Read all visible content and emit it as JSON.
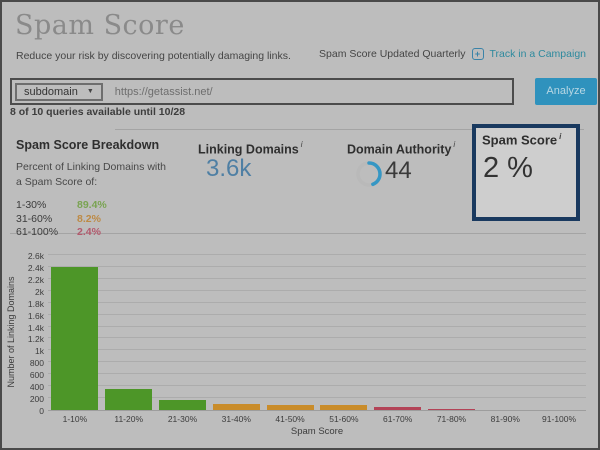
{
  "page": {
    "title": "Spam Score",
    "subtitle": "Reduce your risk by discovering potentially damaging links.",
    "updated_note": "Spam Score Updated Quarterly",
    "track_link_label": "Track in a Campaign",
    "track_icon_glyph": "+"
  },
  "search": {
    "scope_selected": "subdomain",
    "scope_caret": "▼",
    "url_value": "https://getassist.net/",
    "analyze_label": "Analyze",
    "queries_note": "8 of 10 queries available until 10/28"
  },
  "breakdown": {
    "title": "Spam Score Breakdown",
    "description": "Percent of Linking Domains with a Spam Score of:",
    "rows": [
      {
        "range": "1-30%",
        "value": "89.4%",
        "color": "#79a351"
      },
      {
        "range": "31-60%",
        "value": "8.2%",
        "color": "#bd8a45"
      },
      {
        "range": "61-100%",
        "value": "2.4%",
        "color": "#b35a6d"
      }
    ]
  },
  "metrics": {
    "linking_domains": {
      "label": "Linking Domains",
      "info": "i",
      "value": "3.6k"
    },
    "domain_authority": {
      "label": "Domain Authority",
      "info": "i",
      "value": "44",
      "gauge_percent": 44,
      "gauge_color": "#3697c4",
      "track_color": "#b2b2b2"
    },
    "spam_score": {
      "label": "Spam Score",
      "info": "i",
      "value": "2 %"
    }
  },
  "chart_data": {
    "type": "bar",
    "title": "",
    "xlabel": "Spam Score",
    "ylabel": "Number of Linking Domains",
    "categories": [
      "1-10%",
      "11-20%",
      "21-30%",
      "31-40%",
      "41-50%",
      "51-60%",
      "61-70%",
      "71-80%",
      "81-90%",
      "91-100%"
    ],
    "values": [
      2400,
      350,
      170,
      100,
      85,
      90,
      50,
      15,
      0,
      0
    ],
    "colors": [
      "#4d9628",
      "#4d9628",
      "#4d9628",
      "#c98c2a",
      "#c98c2a",
      "#c98c2a",
      "#b34357",
      "#b34357",
      "#b34357",
      "#b34357"
    ],
    "ylim": [
      0,
      2600
    ],
    "ytick_values": [
      0,
      200,
      400,
      600,
      800,
      1000,
      1200,
      1400,
      1600,
      1800,
      2000,
      2200,
      2400,
      2600
    ],
    "ytick_labels": [
      "0",
      "200",
      "400",
      "600",
      "800",
      "1k",
      "1.2k",
      "1.4k",
      "1.6k",
      "1.8k",
      "2k",
      "2.2k",
      "2.4k",
      "2.6k"
    ],
    "grid": true,
    "legend": false
  }
}
